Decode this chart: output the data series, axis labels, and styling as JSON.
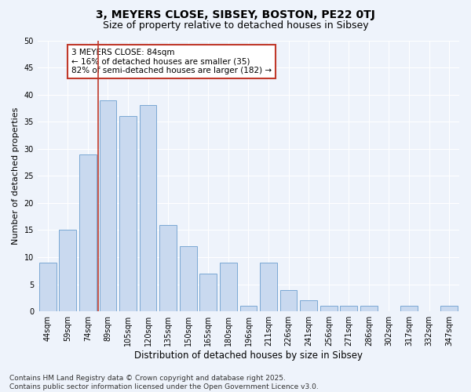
{
  "title": "3, MEYERS CLOSE, SIBSEY, BOSTON, PE22 0TJ",
  "subtitle": "Size of property relative to detached houses in Sibsey",
  "xlabel": "Distribution of detached houses by size in Sibsey",
  "ylabel": "Number of detached properties",
  "categories": [
    "44sqm",
    "59sqm",
    "74sqm",
    "89sqm",
    "105sqm",
    "120sqm",
    "135sqm",
    "150sqm",
    "165sqm",
    "180sqm",
    "196sqm",
    "211sqm",
    "226sqm",
    "241sqm",
    "256sqm",
    "271sqm",
    "286sqm",
    "302sqm",
    "317sqm",
    "332sqm",
    "347sqm"
  ],
  "values": [
    9,
    15,
    29,
    39,
    36,
    38,
    16,
    12,
    7,
    9,
    1,
    9,
    4,
    2,
    1,
    1,
    1,
    0,
    1,
    0,
    1
  ],
  "bar_color": "#c9d9ef",
  "bar_edge_color": "#7aa8d4",
  "vline_color": "#c0392b",
  "vline_pos": 2.5,
  "annotation_text": "3 MEYERS CLOSE: 84sqm\n← 16% of detached houses are smaller (35)\n82% of semi-detached houses are larger (182) →",
  "annotation_box_facecolor": "#ffffff",
  "annotation_box_edgecolor": "#c0392b",
  "background_color": "#eef3fb",
  "plot_bg_color": "#eef3fb",
  "grid_color": "#ffffff",
  "ylim": [
    0,
    50
  ],
  "yticks": [
    0,
    5,
    10,
    15,
    20,
    25,
    30,
    35,
    40,
    45,
    50
  ],
  "footer": "Contains HM Land Registry data © Crown copyright and database right 2025.\nContains public sector information licensed under the Open Government Licence v3.0.",
  "title_fontsize": 10,
  "subtitle_fontsize": 9,
  "xlabel_fontsize": 8.5,
  "ylabel_fontsize": 8,
  "tick_fontsize": 7,
  "annotation_fontsize": 7.5,
  "footer_fontsize": 6.5
}
